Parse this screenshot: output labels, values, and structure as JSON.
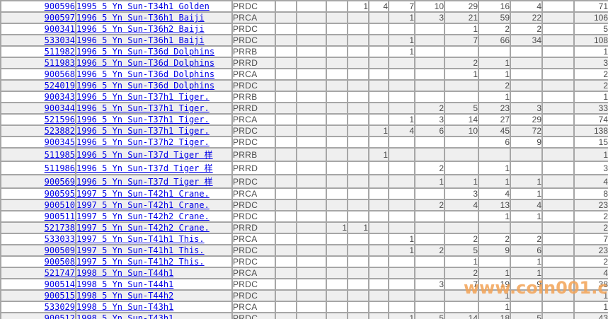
{
  "watermark": {
    "text": "www.coin001.com",
    "color": "#F2A255"
  },
  "colors": {
    "link": "#0000E6",
    "gridline": "#A6A6A6",
    "row_alt_background": "#EFEFEF",
    "value_text": "#4A4A4A",
    "grade_text": "#595959"
  },
  "table": {
    "rows": [
      {
        "id": "900596",
        "description": "1995 5 Yn Sun-T34h1 Golden",
        "grade": "PRDC",
        "values": [
          "",
          "",
          "",
          "1",
          "4",
          "7",
          "10",
          "29",
          "16",
          "4",
          ""
        ],
        "total": "71"
      },
      {
        "id": "900597",
        "description": "1996 5 Yn Sun-T36h1 Baiji",
        "grade": "PRCA",
        "values": [
          "",
          "",
          "",
          "",
          "",
          "1",
          "3",
          "21",
          "59",
          "22",
          ""
        ],
        "total": "106"
      },
      {
        "id": "900341",
        "description": "1996 5 Yn Sun-T36h2 Baiji",
        "grade": "PRDC",
        "values": [
          "",
          "",
          "",
          "",
          "",
          "",
          "",
          "1",
          "2",
          "2",
          ""
        ],
        "total": "5"
      },
      {
        "id": "533034",
        "description": "1996 5 Yn Sun-T36h1 Baiji",
        "grade": "PRDC",
        "values": [
          "",
          "",
          "",
          "",
          "",
          "1",
          "",
          "7",
          "66",
          "34",
          ""
        ],
        "total": "108"
      },
      {
        "id": "511982",
        "description": "1996 5 Yn Sun-T36d Dolphins",
        "grade": "PRRB",
        "values": [
          "",
          "",
          "",
          "",
          "",
          "1",
          "",
          "",
          "",
          "",
          ""
        ],
        "total": "1"
      },
      {
        "id": "511983",
        "description": "1996 5 Yn Sun-T36d Dolphins",
        "grade": "PRRD",
        "values": [
          "",
          "",
          "",
          "",
          "",
          "",
          "",
          "2",
          "1",
          "",
          ""
        ],
        "total": "3"
      },
      {
        "id": "900568",
        "description": "1996 5 Yn Sun-T36d Dolphins",
        "grade": "PRCA",
        "values": [
          "",
          "",
          "",
          "",
          "",
          "",
          "",
          "1",
          "1",
          "",
          ""
        ],
        "total": "2"
      },
      {
        "id": "524019",
        "description": "1996 5 Yn Sun-T36d Dolphins",
        "grade": "PRDC",
        "values": [
          "",
          "",
          "",
          "",
          "",
          "",
          "",
          "",
          "2",
          "",
          ""
        ],
        "total": "2"
      },
      {
        "id": "900343",
        "description": "1996 5 Yn Sun-T37h1 Tiger.",
        "grade": "PRRB",
        "values": [
          "",
          "",
          "",
          "",
          "",
          "",
          "",
          "",
          "1",
          "",
          ""
        ],
        "total": "1"
      },
      {
        "id": "900344",
        "description": "1996 5 Yn Sun-T37h1 Tiger.",
        "grade": "PRRD",
        "values": [
          "",
          "",
          "",
          "",
          "",
          "",
          "2",
          "5",
          "23",
          "3",
          ""
        ],
        "total": "33"
      },
      {
        "id": "521596",
        "description": "1996 5 Yn Sun-T37h1 Tiger.",
        "grade": "PRCA",
        "values": [
          "",
          "",
          "",
          "",
          "",
          "1",
          "3",
          "14",
          "27",
          "29",
          ""
        ],
        "total": "74"
      },
      {
        "id": "523882",
        "description": "1996 5 Yn Sun-T37h1 Tiger.",
        "grade": "PRDC",
        "values": [
          "",
          "",
          "",
          "",
          "1",
          "4",
          "6",
          "10",
          "45",
          "72",
          ""
        ],
        "total": "138"
      },
      {
        "id": "900345",
        "description": "1996 5 Yn Sun-T37h2 Tiger.",
        "grade": "PRDC",
        "values": [
          "",
          "",
          "",
          "",
          "",
          "",
          "",
          "",
          "6",
          "9",
          ""
        ],
        "total": "15"
      },
      {
        "id": "511985",
        "description": "1996 5 Yn Sun-T37d Tiger 样",
        "grade": "PRRB",
        "values": [
          "",
          "",
          "",
          "",
          "1",
          "",
          "",
          "",
          "",
          "",
          ""
        ],
        "total": "1"
      },
      {
        "id": "511986",
        "description": "1996 5 Yn Sun-T37d Tiger 样",
        "grade": "PRRD",
        "values": [
          "",
          "",
          "",
          "",
          "",
          "",
          "2",
          "",
          "1",
          "",
          ""
        ],
        "total": "3"
      },
      {
        "id": "900569",
        "description": "1996 5 Yn Sun-T37d Tiger 样",
        "grade": "PRDC",
        "values": [
          "",
          "",
          "",
          "",
          "",
          "",
          "1",
          "1",
          "1",
          "1",
          ""
        ],
        "total": "4"
      },
      {
        "id": "900595",
        "description": "1997 5 Yn Sun-T42h1 Crane.",
        "grade": "PRCA",
        "values": [
          "",
          "",
          "",
          "",
          "",
          "",
          "",
          "3",
          "4",
          "1",
          ""
        ],
        "total": "8"
      },
      {
        "id": "900510",
        "description": "1997 5 Yn Sun-T42h1 Crane.",
        "grade": "PRDC",
        "values": [
          "",
          "",
          "",
          "",
          "",
          "",
          "2",
          "4",
          "13",
          "4",
          ""
        ],
        "total": "23"
      },
      {
        "id": "900511",
        "description": "1997 5 Yn Sun-T42h2 Crane.",
        "grade": "PRDC",
        "values": [
          "",
          "",
          "",
          "",
          "",
          "",
          "",
          "",
          "1",
          "1",
          ""
        ],
        "total": "2"
      },
      {
        "id": "521738",
        "description": "1997 5 Yn Sun-T42h2 Crane.",
        "grade": "PRRD",
        "values": [
          "",
          "",
          "1",
          "1",
          "",
          "",
          "",
          "",
          "",
          "",
          ""
        ],
        "total": "2"
      },
      {
        "id": "533033",
        "description": "1997 5 Yn Sun-T41h1 This.",
        "grade": "PRCA",
        "values": [
          "",
          "",
          "",
          "",
          "",
          "1",
          "",
          "2",
          "2",
          "2",
          ""
        ],
        "total": "7"
      },
      {
        "id": "900509",
        "description": "1997 5 Yn Sun-T41h1 This.",
        "grade": "PRDC",
        "values": [
          "",
          "",
          "",
          "",
          "",
          "1",
          "2",
          "5",
          "9",
          "6",
          ""
        ],
        "total": "23"
      },
      {
        "id": "900508",
        "description": "1997 5 Yn Sun-T41h2 This.",
        "grade": "PRDC",
        "values": [
          "",
          "",
          "",
          "",
          "",
          "",
          "",
          "1",
          "",
          "1",
          ""
        ],
        "total": "2"
      },
      {
        "id": "521747",
        "description": "1998 5 Yn Sun-T44h1",
        "grade": "PRCA",
        "values": [
          "",
          "",
          "",
          "",
          "",
          "",
          "",
          "2",
          "1",
          "1",
          ""
        ],
        "total": "4"
      },
      {
        "id": "900514",
        "description": "1998 5 Yn Sun-T44h1",
        "grade": "PRDC",
        "values": [
          "",
          "",
          "",
          "",
          "",
          "",
          "3",
          "7",
          "19",
          "9",
          ""
        ],
        "total": "38"
      },
      {
        "id": "900515",
        "description": "1998 5 Yn Sun-T44h2",
        "grade": "PRDC",
        "values": [
          "",
          "",
          "",
          "",
          "",
          "",
          "",
          "",
          "1",
          "",
          ""
        ],
        "total": "1"
      },
      {
        "id": "533029",
        "description": "1998 5 Yn Sun-T43h1",
        "grade": "PRCA",
        "values": [
          "",
          "",
          "",
          "",
          "",
          "",
          "",
          "",
          "1",
          "",
          ""
        ],
        "total": "1"
      },
      {
        "id": "900512",
        "description": "1998 5 Yn Sun-T43h1",
        "grade": "PRDC",
        "values": [
          "",
          "",
          "",
          "",
          "",
          "1",
          "5",
          "14",
          "18",
          "5",
          ""
        ],
        "total": "43"
      }
    ]
  }
}
